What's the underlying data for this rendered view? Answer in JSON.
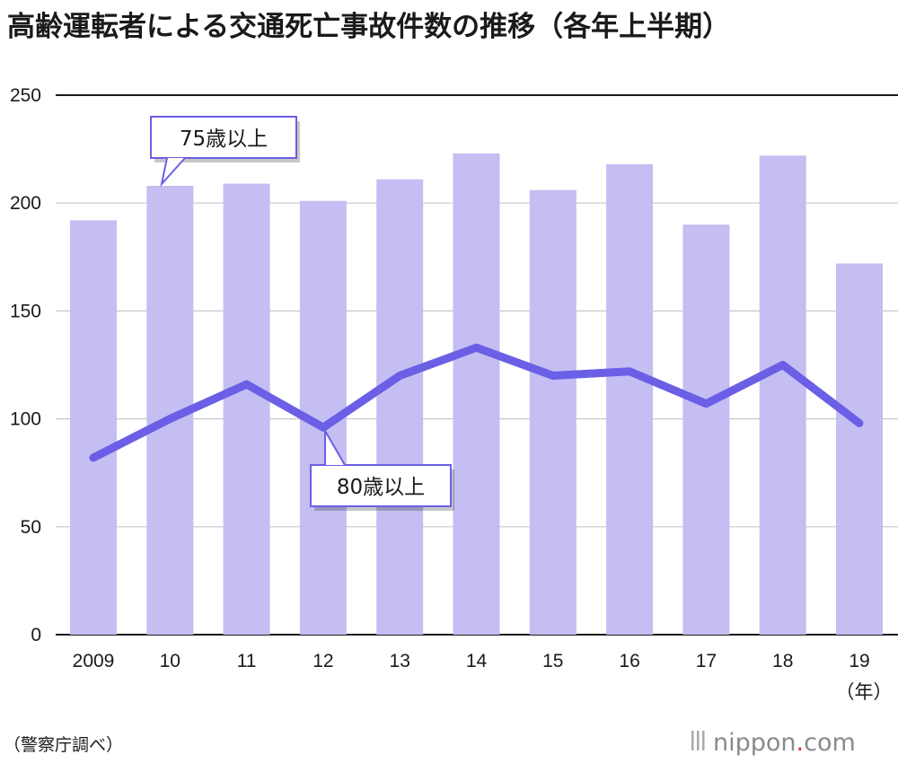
{
  "title": "高齢運転者による交通死亡事故件数の推移（各年上半期）",
  "source": "（警察庁調べ）",
  "logo": {
    "text_left": "nippon",
    "dot": ".",
    "text_right": "com",
    "dot_color": "#e0322b"
  },
  "chart_data": {
    "type": "bar",
    "categories": [
      "2009",
      "10",
      "11",
      "12",
      "13",
      "14",
      "15",
      "16",
      "17",
      "18",
      "19"
    ],
    "x_unit_label": "（年）",
    "ylim": [
      0,
      250
    ],
    "yticks": [
      0,
      50,
      100,
      150,
      200,
      250
    ],
    "grid": true,
    "series": [
      {
        "name": "75歳以上",
        "kind": "bar",
        "color": "#c4bef2",
        "values": [
          192,
          208,
          209,
          201,
          211,
          223,
          206,
          218,
          190,
          222,
          172
        ]
      },
      {
        "name": "80歳以上",
        "kind": "line",
        "color": "#6b5fe6",
        "values": [
          82,
          100,
          116,
          96,
          120,
          133,
          120,
          122,
          107,
          125,
          98
        ]
      }
    ],
    "annotations": [
      {
        "label": "75歳以上",
        "series": 0,
        "category_index": 1
      },
      {
        "label": "80歳以上",
        "series": 1,
        "category_index": 3
      }
    ]
  }
}
